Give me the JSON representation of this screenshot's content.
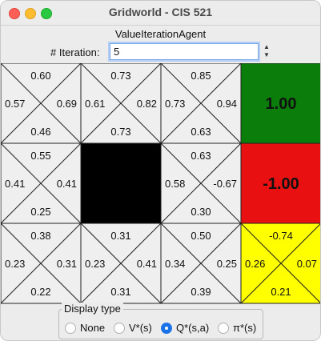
{
  "window": {
    "title": "Gridworld - CIS 521"
  },
  "agent_label": "ValueIterationAgent",
  "iteration": {
    "label": "# Iteration:",
    "value": "5"
  },
  "grid": {
    "rows": [
      [
        {
          "type": "q",
          "n": "0.60",
          "e": "0.69",
          "s": "0.46",
          "w": "0.57",
          "color": "#efefef"
        },
        {
          "type": "q",
          "n": "0.73",
          "e": "0.82",
          "s": "0.73",
          "w": "0.61",
          "color": "#efefef"
        },
        {
          "type": "q",
          "n": "0.85",
          "e": "0.94",
          "s": "0.63",
          "w": "0.73",
          "color": "#efefef"
        },
        {
          "type": "terminal",
          "value": "1.00",
          "color": "#0a7d0a"
        }
      ],
      [
        {
          "type": "q",
          "n": "0.55",
          "e": "0.41",
          "s": "0.25",
          "w": "0.41",
          "color": "#efefef"
        },
        {
          "type": "wall",
          "color": "#000000"
        },
        {
          "type": "q",
          "n": "0.63",
          "e": "-0.67",
          "s": "0.30",
          "w": "0.58",
          "color": "#efefef"
        },
        {
          "type": "terminal",
          "value": "-1.00",
          "color": "#e81010"
        }
      ],
      [
        {
          "type": "q",
          "n": "0.38",
          "e": "0.31",
          "s": "0.22",
          "w": "0.23",
          "color": "#efefef"
        },
        {
          "type": "q",
          "n": "0.31",
          "e": "0.41",
          "s": "0.31",
          "w": "0.23",
          "color": "#efefef"
        },
        {
          "type": "q",
          "n": "0.50",
          "e": "0.25",
          "s": "0.39",
          "w": "0.34",
          "color": "#efefef"
        },
        {
          "type": "q",
          "n": "-0.74",
          "e": "0.07",
          "s": "0.21",
          "w": "0.26",
          "color": "#ffff00",
          "highlight": true
        }
      ]
    ]
  },
  "display_type": {
    "legend": "Display type",
    "options": [
      {
        "label": "None",
        "checked": false
      },
      {
        "label": "V*(s)",
        "checked": false
      },
      {
        "label": "Q*(s,a)",
        "checked": true
      },
      {
        "label": "π*(s)",
        "checked": false
      }
    ]
  }
}
